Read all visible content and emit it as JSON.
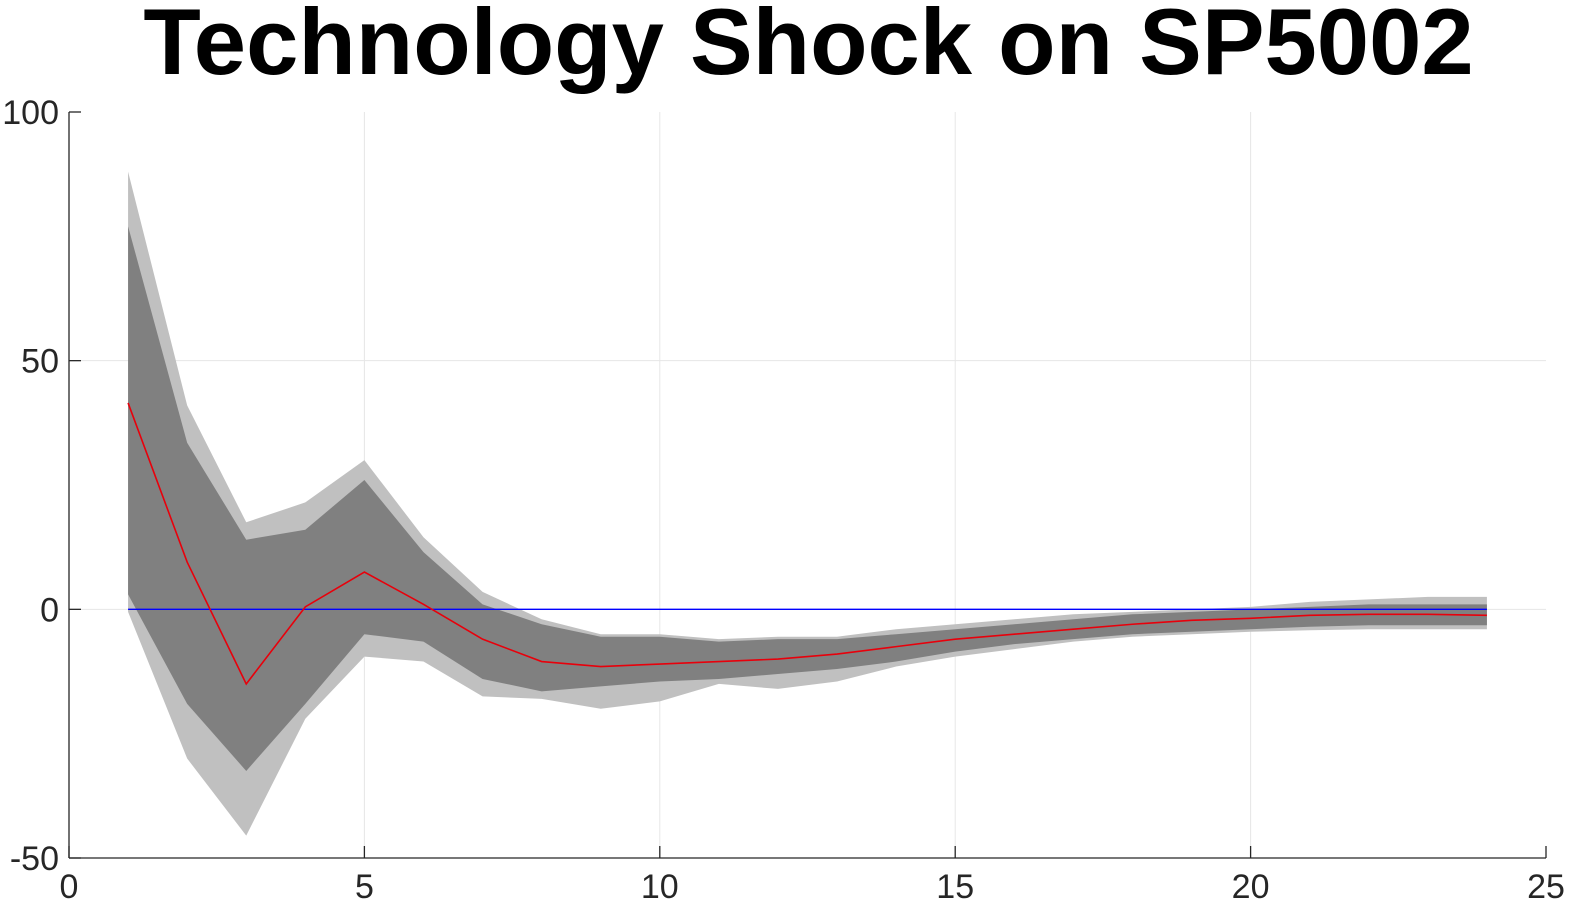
{
  "chart_data": {
    "type": "area",
    "title": "Technology Shock on SP5002",
    "xlabel": "",
    "ylabel": "",
    "xlim": [
      0,
      25
    ],
    "ylim": [
      -50,
      100
    ],
    "xticks": [
      0,
      5,
      10,
      15,
      20,
      25
    ],
    "yticks": [
      -50,
      0,
      50,
      100
    ],
    "grid": true,
    "colors": {
      "outer_band": "#c0c0c0",
      "inner_band": "#808080",
      "response_line": "#e8000b",
      "zero_line": "#0000ff",
      "grid": "#e6e6e6",
      "axis": "#262626"
    },
    "x": [
      1,
      2,
      3,
      4,
      5,
      6,
      7,
      8,
      9,
      10,
      11,
      12,
      13,
      14,
      15,
      16,
      17,
      18,
      19,
      20,
      21,
      22,
      23,
      24
    ],
    "series": [
      {
        "role": "outer_band_upper",
        "values": [
          88,
          41,
          17.5,
          21.5,
          30,
          14.5,
          3.5,
          -2,
          -5,
          -5,
          -6,
          -5.5,
          -5.5,
          -4,
          -3,
          -2,
          -1,
          -0.5,
          0,
          0.5,
          1.5,
          2,
          2.5,
          2.5
        ]
      },
      {
        "role": "inner_band_upper",
        "values": [
          77,
          33.5,
          14,
          16,
          26,
          11.5,
          1,
          -3,
          -5.5,
          -5.5,
          -6.5,
          -6,
          -6,
          -5,
          -4,
          -3,
          -2,
          -1,
          -0.5,
          0,
          0.5,
          1,
          1,
          1
        ]
      },
      {
        "role": "response",
        "values": [
          41.5,
          9.5,
          -15,
          0.5,
          7.5,
          1,
          -6,
          -10.5,
          -11.5,
          -11,
          -10.5,
          -10,
          -9,
          -7.5,
          -6,
          -5,
          -4,
          -3,
          -2.2,
          -1.8,
          -1.2,
          -1,
          -1,
          -1.2
        ]
      },
      {
        "role": "inner_band_lower",
        "values": [
          3,
          -19,
          -32.5,
          -19,
          -5,
          -6.5,
          -14,
          -16.5,
          -15.5,
          -14.5,
          -14,
          -13,
          -12,
          -10.5,
          -8.5,
          -7,
          -6,
          -5,
          -4.5,
          -4,
          -3.5,
          -3.2,
          -3.2,
          -3.2
        ]
      },
      {
        "role": "outer_band_lower",
        "values": [
          -0.5,
          -30,
          -45.5,
          -22,
          -9.5,
          -10.5,
          -17.5,
          -18,
          -20,
          -18.5,
          -15,
          -16,
          -14.5,
          -11.5,
          -9.5,
          -8,
          -6.5,
          -5.5,
          -5,
          -4.5,
          -4.2,
          -4,
          -4,
          -4
        ]
      },
      {
        "role": "zero_line",
        "values": [
          0,
          0,
          0,
          0,
          0,
          0,
          0,
          0,
          0,
          0,
          0,
          0,
          0,
          0,
          0,
          0,
          0,
          0,
          0,
          0,
          0,
          0,
          0,
          0
        ]
      }
    ]
  }
}
